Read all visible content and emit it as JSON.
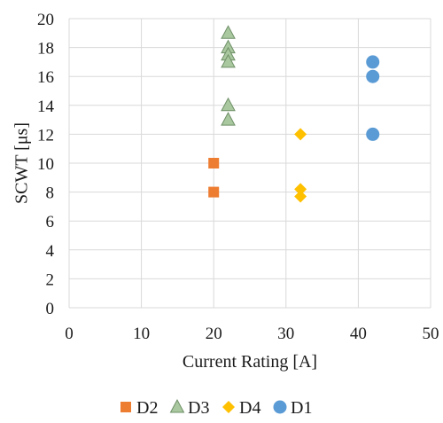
{
  "chart_data": {
    "type": "scatter",
    "xlabel": "Current Rating [A]",
    "ylabel": "SCWT [μs]",
    "xlim": [
      0,
      50
    ],
    "ylim": [
      0,
      20
    ],
    "x_ticks": [
      0,
      10,
      20,
      30,
      40,
      50
    ],
    "y_ticks": [
      0,
      2,
      4,
      6,
      8,
      10,
      12,
      14,
      16,
      18,
      20
    ],
    "grid": "both",
    "legend_position": "bottom",
    "series": [
      {
        "name": "D2",
        "marker": "square",
        "color": "#ED7D31",
        "edge": "#ED7D31",
        "points": [
          {
            "x": 20,
            "y": 10
          },
          {
            "x": 20,
            "y": 8
          }
        ]
      },
      {
        "name": "D3",
        "marker": "triangle",
        "color": "#A9C8A0",
        "edge": "#6E8F66",
        "points": [
          {
            "x": 22,
            "y": 19
          },
          {
            "x": 22,
            "y": 18
          },
          {
            "x": 22,
            "y": 17.5
          },
          {
            "x": 22,
            "y": 17
          },
          {
            "x": 22,
            "y": 14
          },
          {
            "x": 22,
            "y": 13
          }
        ]
      },
      {
        "name": "D4",
        "marker": "diamond",
        "color": "#FFC000",
        "edge": "#FFC000",
        "points": [
          {
            "x": 32,
            "y": 12
          },
          {
            "x": 32,
            "y": 8.2
          },
          {
            "x": 32,
            "y": 7.7
          }
        ]
      },
      {
        "name": "D1",
        "marker": "circle",
        "color": "#5B9BD5",
        "edge": "#5B9BD5",
        "points": [
          {
            "x": 42,
            "y": 17
          },
          {
            "x": 42,
            "y": 16
          },
          {
            "x": 42,
            "y": 12
          }
        ]
      }
    ]
  }
}
